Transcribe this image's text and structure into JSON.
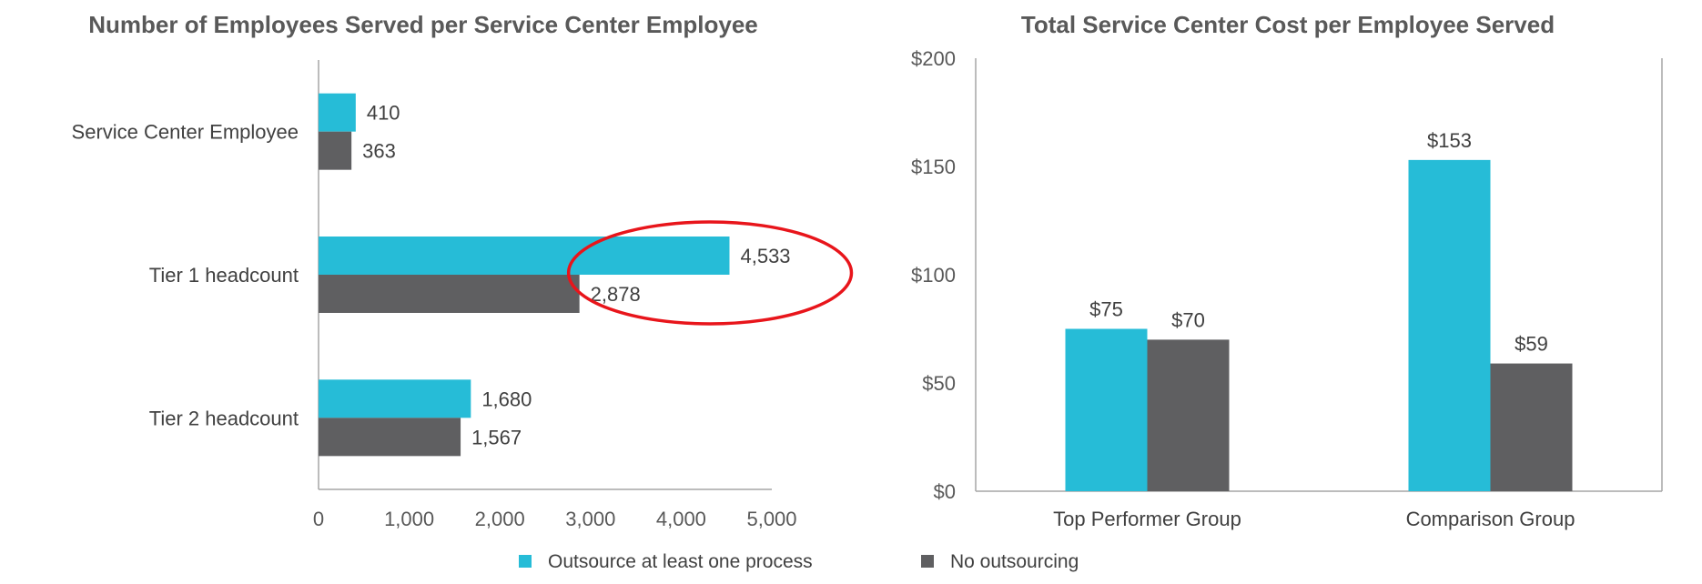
{
  "legend": {
    "items": [
      {
        "label": "Outsource at least one process",
        "color": "#26BCD7"
      },
      {
        "label": "No outsourcing",
        "color": "#5F5F61"
      }
    ]
  },
  "annotation": {
    "shape": "ellipse",
    "color": "#E8151B",
    "target": "Tier 1 headcount"
  },
  "chart_data": [
    {
      "type": "bar",
      "orientation": "horizontal",
      "title": "Number of Employees Served per Service Center Employee",
      "categories": [
        "Service Center Employee",
        "Tier 1 headcount",
        "Tier 2 headcount"
      ],
      "series": [
        {
          "name": "Outsource at least one process",
          "color": "#26BCD7",
          "values": [
            410,
            4533,
            1680
          ],
          "labels": [
            "410",
            "4,533",
            "1,680"
          ]
        },
        {
          "name": "No outsourcing",
          "color": "#5F5F61",
          "values": [
            363,
            2878,
            1567
          ],
          "labels": [
            "363",
            "2,878",
            "1,567"
          ]
        }
      ],
      "xlim": [
        0,
        5000
      ],
      "xticks": [
        0,
        1000,
        2000,
        3000,
        4000,
        5000
      ],
      "xtick_labels": [
        "0",
        "1,000",
        "2,000",
        "3,000",
        "4,000",
        "5,000"
      ],
      "xlabel": "",
      "ylabel": "",
      "grid": false
    },
    {
      "type": "bar",
      "orientation": "vertical",
      "title": "Total Service Center Cost per Employee Served",
      "categories": [
        "Top Performer Group",
        "Comparison Group"
      ],
      "series": [
        {
          "name": "Outsource at least one process",
          "color": "#26BCD7",
          "values": [
            75,
            153
          ],
          "labels": [
            "$75",
            "$153"
          ]
        },
        {
          "name": "No outsourcing",
          "color": "#5F5F61",
          "values": [
            70,
            59
          ],
          "labels": [
            "$70",
            "$59"
          ]
        }
      ],
      "ylim": [
        0,
        200
      ],
      "yticks": [
        0,
        50,
        100,
        150,
        200
      ],
      "ytick_labels": [
        "$0",
        "$50",
        "$100",
        "$150",
        "$200"
      ],
      "xlabel": "",
      "ylabel": "",
      "grid": false
    }
  ]
}
